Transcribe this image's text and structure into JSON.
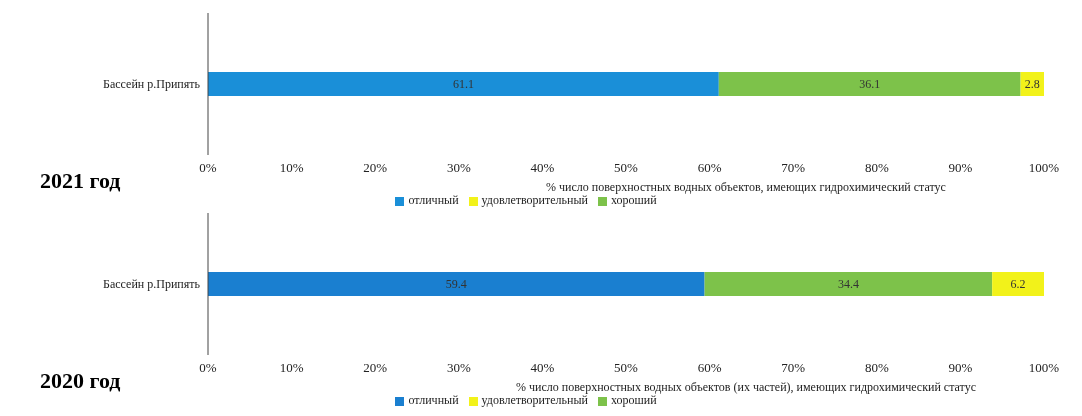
{
  "chart_data": [
    {
      "type": "bar",
      "title": "2021 год",
      "orientation": "horizontal",
      "stacked": true,
      "categories": [
        "Бассейн р.Припять"
      ],
      "series": [
        {
          "name": "отличный",
          "color": "#1a8fd8",
          "values": [
            61.1
          ]
        },
        {
          "name": "хороший",
          "color": "#7dc24a",
          "values": [
            36.1
          ]
        },
        {
          "name": "удовлетворительный",
          "color": "#f2f21a",
          "values": [
            2.8
          ]
        }
      ],
      "xlabel": "% число поверхностных водных объектов, имеющих гидрохимический статус",
      "xlim": [
        0,
        100
      ],
      "xticks": [
        {
          "value": 0,
          "label": "0%"
        },
        {
          "value": 10,
          "label": "10%"
        },
        {
          "value": 20,
          "label": "20%"
        },
        {
          "value": 30,
          "label": "30%"
        },
        {
          "value": 40,
          "label": "40%"
        },
        {
          "value": 50,
          "label": "50%"
        },
        {
          "value": 60,
          "label": "60%"
        },
        {
          "value": 70,
          "label": "70%"
        },
        {
          "value": 80,
          "label": "80%"
        },
        {
          "value": 90,
          "label": "90%"
        },
        {
          "value": 100,
          "label": "100%"
        }
      ],
      "data_labels": true,
      "legend": "bottom",
      "grid": false
    },
    {
      "type": "bar",
      "title": "2020 год",
      "orientation": "horizontal",
      "stacked": true,
      "categories": [
        "Бассейн р.Припять"
      ],
      "series": [
        {
          "name": "отличный",
          "color": "#1a7fd0",
          "values": [
            59.4
          ]
        },
        {
          "name": "хороший",
          "color": "#7dc24a",
          "values": [
            34.4
          ]
        },
        {
          "name": "удовлетворительный",
          "color": "#f2f21a",
          "values": [
            6.2
          ]
        }
      ],
      "xlabel": "% число поверхностных водных объектов (их частей), имеющих гидрохимический статус",
      "xlim": [
        0,
        100
      ],
      "xticks": [
        {
          "value": 0,
          "label": "0%"
        },
        {
          "value": 10,
          "label": "10%"
        },
        {
          "value": 20,
          "label": "20%"
        },
        {
          "value": 30,
          "label": "30%"
        },
        {
          "value": 40,
          "label": "40%"
        },
        {
          "value": 50,
          "label": "50%"
        },
        {
          "value": 60,
          "label": "60%"
        },
        {
          "value": 70,
          "label": "70%"
        },
        {
          "value": 80,
          "label": "80%"
        },
        {
          "value": 90,
          "label": "90%"
        },
        {
          "value": 100,
          "label": "100%"
        }
      ],
      "data_labels": true,
      "legend": "bottom",
      "grid": false
    }
  ]
}
